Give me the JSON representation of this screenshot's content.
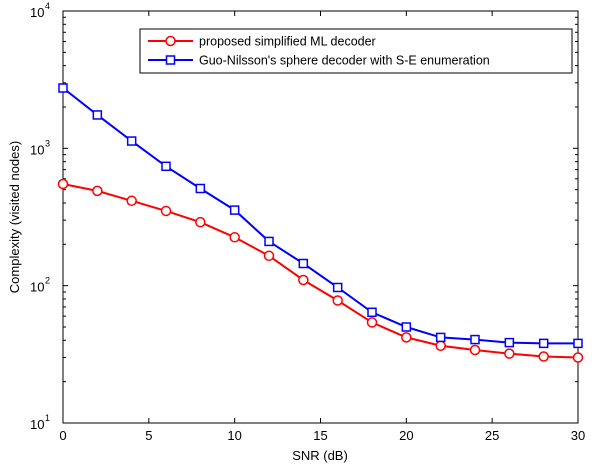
{
  "chart_data": {
    "type": "line",
    "xlabel": "SNR (dB)",
    "ylabel": "Complexity (visited nodes)",
    "xlim": [
      0,
      30
    ],
    "ylim": [
      10,
      10000
    ],
    "yscale": "log",
    "grid": false,
    "legend_position": "top-right",
    "x": [
      0,
      2,
      4,
      6,
      8,
      10,
      12,
      14,
      16,
      18,
      20,
      22,
      24,
      26,
      28,
      30
    ],
    "x_ticks": [
      "0",
      "5",
      "10",
      "15",
      "20",
      "25",
      "30"
    ],
    "y_ticks": [
      {
        "base": "10",
        "exp": "1"
      },
      {
        "base": "10",
        "exp": "2"
      },
      {
        "base": "10",
        "exp": "3"
      },
      {
        "base": "10",
        "exp": "4"
      }
    ],
    "series": [
      {
        "name": "proposed simplified ML decoder",
        "color": "#ff0000",
        "marker": "circle",
        "values": [
          550,
          490,
          415,
          350,
          290,
          225,
          165,
          110,
          78,
          54,
          42,
          36.5,
          34,
          32,
          30.5,
          30
        ]
      },
      {
        "name": "Guo-Nilsson's sphere decoder with S-E enumeration",
        "color": "#0000ff",
        "marker": "square",
        "values": [
          2750,
          1750,
          1130,
          740,
          510,
          355,
          210,
          145,
          97,
          64,
          50,
          42,
          40.5,
          38.5,
          38,
          38
        ]
      }
    ]
  }
}
